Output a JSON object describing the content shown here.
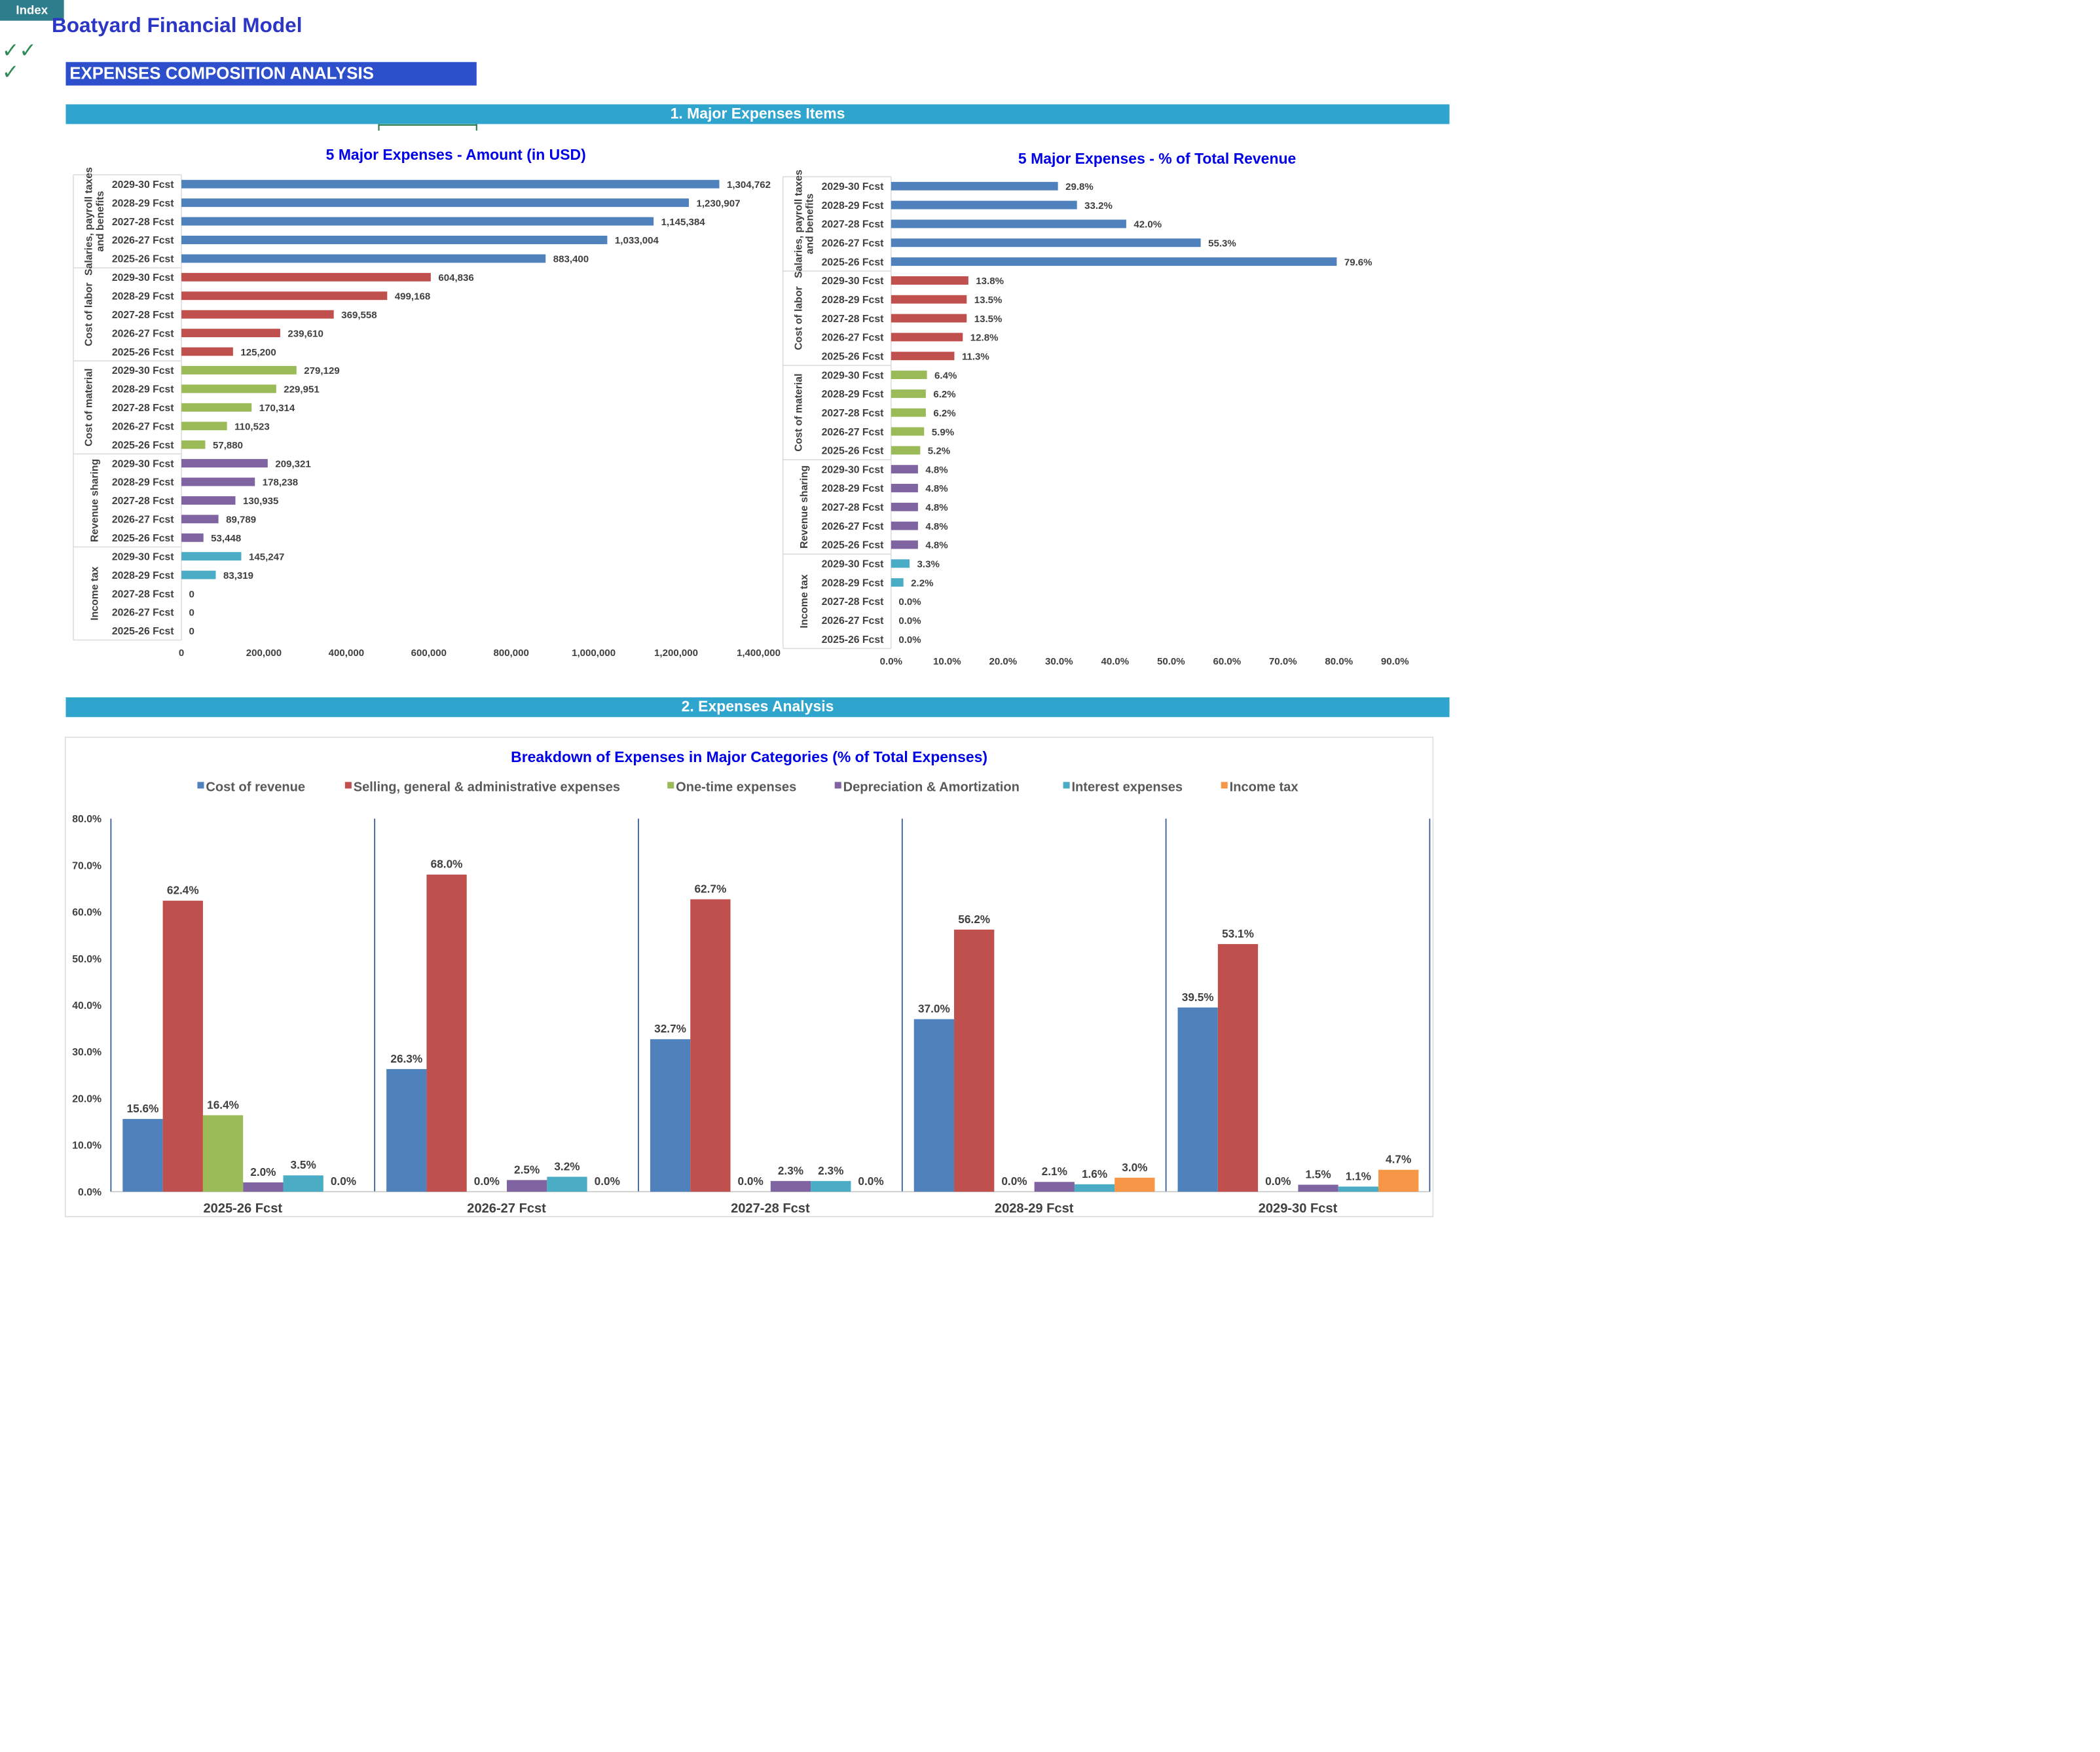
{
  "header": {
    "index_label": "Index",
    "app_title": "Boatyard Financial Model",
    "check_marks": [
      "✓✓",
      "✓"
    ],
    "section_title": "EXPENSES COMPOSITION ANALYSIS"
  },
  "sections": {
    "major_items": "1. Major Expenses Items",
    "analysis": "2. Expenses Analysis"
  },
  "chart_data": [
    {
      "type": "bar",
      "orientation": "horizontal",
      "title": "5 Major Expenses - Amount (in USD)",
      "groups": [
        "Salaries, payroll taxes and benefits",
        "Cost of labor",
        "Cost of material",
        "Revenue sharing",
        "Income tax"
      ],
      "categories": [
        "2029-30 Fcst",
        "2028-29 Fcst",
        "2027-28 Fcst",
        "2026-27 Fcst",
        "2025-26 Fcst"
      ],
      "values": [
        [
          1304762,
          1230907,
          1145384,
          1033004,
          883400
        ],
        [
          604836,
          499168,
          369558,
          239610,
          125200
        ],
        [
          279129,
          229951,
          170314,
          110523,
          57880
        ],
        [
          209321,
          178238,
          130935,
          89789,
          53448
        ],
        [
          145247,
          83319,
          0,
          0,
          0
        ]
      ],
      "labels": [
        [
          "1,304,762",
          "1,230,907",
          "1,145,384",
          "1,033,004",
          "883,400"
        ],
        [
          "604,836",
          "499,168",
          "369,558",
          "239,610",
          "125,200"
        ],
        [
          "279,129",
          "229,951",
          "170,314",
          "110,523",
          "57,880"
        ],
        [
          "209,321",
          "178,238",
          "130,935",
          "89,789",
          "53,448"
        ],
        [
          "145,247",
          "83,319",
          "0",
          "0",
          "0"
        ]
      ],
      "group_colors": [
        "#4F81BD",
        "#C0504D",
        "#9BBB59",
        "#8064A2",
        "#4BACC6"
      ],
      "xlim": [
        0,
        1400000
      ],
      "xticks": [
        "0",
        "200,000",
        "400,000",
        "600,000",
        "800,000",
        "1,000,000",
        "1,200,000",
        "1,400,000"
      ]
    },
    {
      "type": "bar",
      "orientation": "horizontal",
      "title": "5 Major Expenses - % of Total Revenue",
      "groups": [
        "Salaries, payroll taxes and benefits",
        "Cost of labor",
        "Cost of material",
        "Revenue sharing",
        "Income tax"
      ],
      "categories": [
        "2029-30 Fcst",
        "2028-29 Fcst",
        "2027-28 Fcst",
        "2026-27 Fcst",
        "2025-26 Fcst"
      ],
      "values": [
        [
          29.8,
          33.2,
          42.0,
          55.3,
          79.6
        ],
        [
          13.8,
          13.5,
          13.5,
          12.8,
          11.3
        ],
        [
          6.4,
          6.2,
          6.2,
          5.9,
          5.2
        ],
        [
          4.8,
          4.8,
          4.8,
          4.8,
          4.8
        ],
        [
          3.3,
          2.2,
          0.0,
          0.0,
          0.0
        ]
      ],
      "labels": [
        [
          "29.8%",
          "33.2%",
          "42.0%",
          "55.3%",
          "79.6%"
        ],
        [
          "13.8%",
          "13.5%",
          "13.5%",
          "12.8%",
          "11.3%"
        ],
        [
          "6.4%",
          "6.2%",
          "6.2%",
          "5.9%",
          "5.2%"
        ],
        [
          "4.8%",
          "4.8%",
          "4.8%",
          "4.8%",
          "4.8%"
        ],
        [
          "3.3%",
          "2.2%",
          "0.0%",
          "0.0%",
          "0.0%"
        ]
      ],
      "group_colors": [
        "#4F81BD",
        "#C0504D",
        "#9BBB59",
        "#8064A2",
        "#4BACC6"
      ],
      "xlim": [
        0,
        90
      ],
      "xticks": [
        "0.0%",
        "10.0%",
        "20.0%",
        "30.0%",
        "40.0%",
        "50.0%",
        "60.0%",
        "70.0%",
        "80.0%",
        "90.0%"
      ]
    },
    {
      "type": "bar",
      "orientation": "vertical",
      "title": "Breakdown of Expenses in Major Categories (% of Total Expenses)",
      "legend_position": "top",
      "categories": [
        "2025-26 Fcst",
        "2026-27 Fcst",
        "2027-28 Fcst",
        "2028-29 Fcst",
        "2029-30 Fcst"
      ],
      "series": [
        {
          "name": "Cost of revenue",
          "color": "#4F81BD",
          "values": [
            15.6,
            26.3,
            32.7,
            37.0,
            39.5
          ],
          "labels": [
            "15.6%",
            "26.3%",
            "32.7%",
            "37.0%",
            "39.5%"
          ]
        },
        {
          "name": "Selling, general & administrative expenses",
          "color": "#C0504D",
          "values": [
            62.4,
            68.0,
            62.7,
            56.2,
            53.1
          ],
          "labels": [
            "62.4%",
            "68.0%",
            "62.7%",
            "56.2%",
            "53.1%"
          ]
        },
        {
          "name": "One-time expenses",
          "color": "#9BBB59",
          "values": [
            16.4,
            0.0,
            0.0,
            0.0,
            0.0
          ],
          "labels": [
            "16.4%",
            "0.0%",
            "0.0%",
            "0.0%",
            "0.0%"
          ]
        },
        {
          "name": "Depreciation & Amortization",
          "color": "#8064A2",
          "values": [
            2.0,
            2.5,
            2.3,
            2.1,
            1.5
          ],
          "labels": [
            "2.0%",
            "2.5%",
            "2.3%",
            "2.1%",
            "1.5%"
          ]
        },
        {
          "name": "Interest expenses",
          "color": "#4BACC6",
          "values": [
            3.5,
            3.2,
            2.3,
            1.6,
            1.1
          ],
          "labels": [
            "3.5%",
            "3.2%",
            "2.3%",
            "1.6%",
            "1.1%"
          ]
        },
        {
          "name": "Income tax",
          "color": "#F79646",
          "values": [
            0.0,
            0.0,
            0.0,
            3.0,
            4.7
          ],
          "labels": [
            "0.0%",
            "0.0%",
            "0.0%",
            "3.0%",
            "4.7%"
          ]
        }
      ],
      "ylim": [
        0,
        80
      ],
      "yticks": [
        "0.0%",
        "10.0%",
        "20.0%",
        "30.0%",
        "40.0%",
        "50.0%",
        "60.0%",
        "70.0%",
        "80.0%"
      ]
    }
  ]
}
